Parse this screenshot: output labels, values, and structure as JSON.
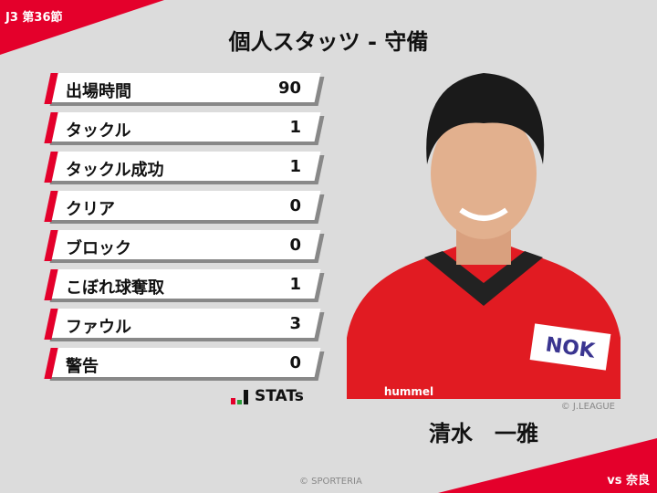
{
  "header": {
    "round": "J3 第36節",
    "title": "個人スタッツ - 守備"
  },
  "stats": [
    {
      "label": "出場時間",
      "value": "90"
    },
    {
      "label": "タックル",
      "value": "1"
    },
    {
      "label": "タックル成功",
      "value": "1"
    },
    {
      "label": "クリア",
      "value": "0"
    },
    {
      "label": "ブロック",
      "value": "0"
    },
    {
      "label": "こぼれ球奪取",
      "value": "1"
    },
    {
      "label": "ファウル",
      "value": "3"
    },
    {
      "label": "警告",
      "value": "0"
    }
  ],
  "brand": {
    "logo_text": "STATs"
  },
  "player": {
    "name": "清水　一雅",
    "photo_credit": "© J.LEAGUE",
    "kit_brand": "hummel",
    "sponsor": "NOK"
  },
  "footer": {
    "copyright": "© SPORTERIA",
    "opponent": "vs 奈良"
  },
  "colors": {
    "accent": "#e4002b",
    "background": "#dcdcdc"
  }
}
